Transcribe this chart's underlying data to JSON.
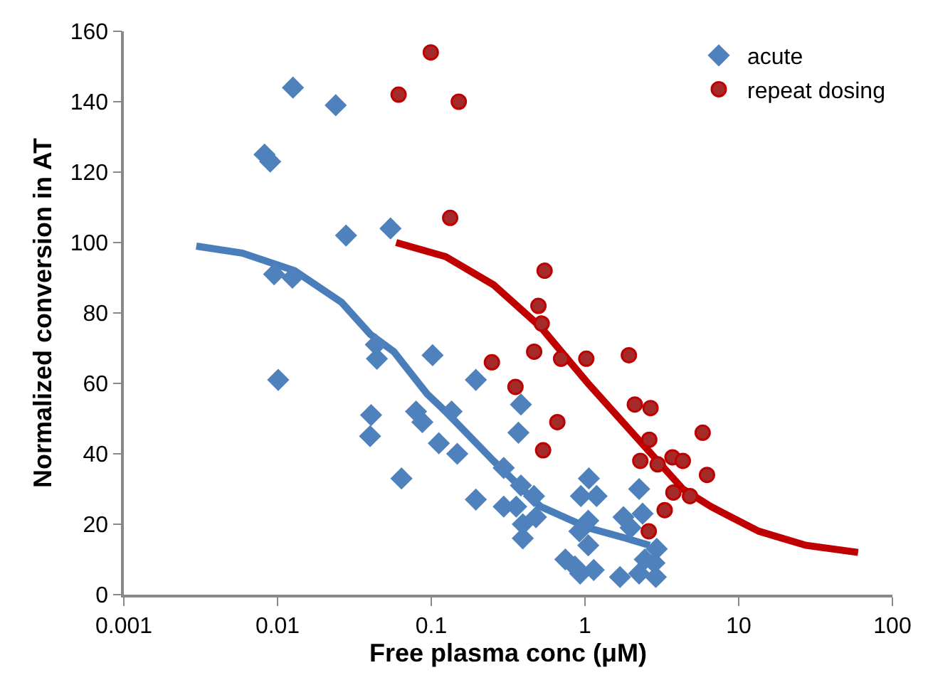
{
  "chart_data": {
    "type": "scatter",
    "xlabel": "Free plasma conc (μM)",
    "ylabel": "Normalized conversion in AT",
    "log": "x",
    "xlim": [
      0.001,
      100
    ],
    "xticks": [
      0.001,
      0.01,
      0.1,
      1,
      10,
      100
    ],
    "ylim": [
      0,
      160
    ],
    "yticks": [
      0,
      20,
      40,
      60,
      80,
      100,
      120,
      140,
      160
    ],
    "grid": false,
    "legend": "top right",
    "series": [
      {
        "name": "acute",
        "marker": "diamond",
        "color": "#4f81bd",
        "x": [
          0.0126,
          0.0239,
          0.00823,
          0.00896,
          0.0279,
          0.0543,
          0.0095,
          0.0125,
          0.0101,
          0.0436,
          0.0443,
          0.0406,
          0.04,
          0.0796,
          0.0875,
          0.064,
          0.102,
          0.195,
          0.1356,
          0.112,
          0.1476,
          0.383,
          0.369,
          0.195,
          0.296,
          0.296,
          0.357,
          0.383,
          0.466,
          0.48,
          0.394,
          0.394,
          1.06,
          0.94,
          1.19,
          1.05,
          0.92,
          1.05,
          0.745,
          0.86,
          0.93,
          1.14,
          1.69,
          2.25,
          1.78,
          1.98,
          2.37,
          2.93,
          2.45,
          2.83,
          2.25,
          2.89
        ],
        "values": [
          144,
          139,
          125,
          123,
          102,
          104,
          91,
          90,
          61,
          71,
          67,
          51,
          45,
          52,
          49,
          33,
          68,
          61,
          52,
          43,
          40,
          54,
          46,
          27,
          36,
          25,
          25,
          31,
          28,
          22,
          20,
          16,
          33,
          28,
          28,
          21,
          18,
          14,
          10,
          8,
          6,
          7,
          5,
          30,
          22,
          19,
          23,
          13,
          10,
          9,
          6,
          5
        ]
      },
      {
        "name": "repeat dosing",
        "marker": "circle",
        "color": "#a52a2a",
        "x": [
          0.0613,
          0.0993,
          0.151,
          0.1327,
          0.546,
          0.498,
          0.523,
          0.248,
          0.467,
          0.699,
          1.02,
          1.93,
          0.353,
          0.661,
          0.534,
          2.11,
          2.67,
          2.62,
          2.29,
          2.97,
          3.71,
          3.76,
          3.3,
          2.6,
          4.33,
          5.83,
          6.22,
          4.82
        ],
        "values": [
          142,
          154,
          140,
          107,
          92,
          82,
          77,
          66,
          69,
          67,
          67,
          68,
          59,
          49,
          41,
          54,
          53,
          44,
          38,
          37,
          39,
          29,
          24,
          18,
          38,
          46,
          34,
          28
        ]
      },
      {
        "type": "line",
        "marker": "none",
        "color": "#4a7ebb",
        "x": [
          0.00296,
          0.0059,
          0.0129,
          0.0261,
          0.04,
          0.0571,
          0.094,
          0.124,
          0.254,
          0.515,
          1.047,
          1.85,
          2.64
        ],
        "values": [
          99,
          97,
          92,
          83,
          74,
          69,
          57,
          52,
          38,
          25,
          19,
          16,
          14
        ]
      },
      {
        "type": "line",
        "marker": "none",
        "color": "#c00000",
        "x": [
          0.0591,
          0.124,
          0.254,
          0.515,
          1.047,
          2.13,
          4.33,
          6.6,
          13.5,
          27.4,
          59.8
        ],
        "values": [
          100,
          96,
          88,
          76,
          60,
          45,
          30,
          25,
          18,
          14,
          12
        ]
      }
    ]
  }
}
